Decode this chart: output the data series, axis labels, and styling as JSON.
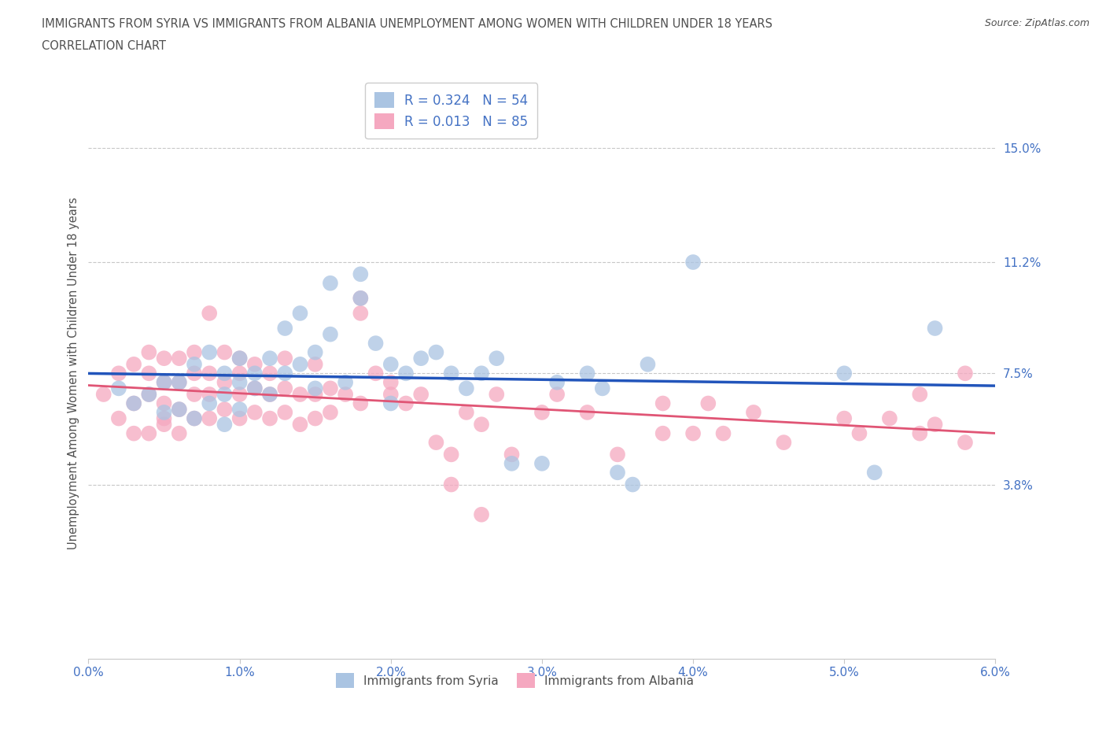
{
  "title_line1": "IMMIGRANTS FROM SYRIA VS IMMIGRANTS FROM ALBANIA UNEMPLOYMENT AMONG WOMEN WITH CHILDREN UNDER 18 YEARS",
  "title_line2": "CORRELATION CHART",
  "source": "Source: ZipAtlas.com",
  "ylabel": "Unemployment Among Women with Children Under 18 years",
  "xlim": [
    0.0,
    0.06
  ],
  "ylim": [
    -0.02,
    0.17
  ],
  "xticks": [
    0.0,
    0.01,
    0.02,
    0.03,
    0.04,
    0.05,
    0.06
  ],
  "xtick_labels": [
    "0.0%",
    "1.0%",
    "2.0%",
    "3.0%",
    "4.0%",
    "5.0%",
    "6.0%"
  ],
  "ytick_positions": [
    0.038,
    0.075,
    0.112,
    0.15
  ],
  "ytick_labels": [
    "3.8%",
    "7.5%",
    "11.2%",
    "15.0%"
  ],
  "syria_R": 0.324,
  "syria_N": 54,
  "albania_R": 0.013,
  "albania_N": 85,
  "syria_color": "#aac4e2",
  "albania_color": "#f5a8c0",
  "syria_line_color": "#2255bb",
  "albania_line_color": "#e05575",
  "legend_label_syria": "Immigrants from Syria",
  "legend_label_albania": "Immigrants from Albania",
  "title_color": "#505050",
  "axis_label_color": "#4472c4",
  "grid_color": "#c8c8c8",
  "syria_x": [
    0.002,
    0.003,
    0.004,
    0.005,
    0.005,
    0.006,
    0.006,
    0.007,
    0.007,
    0.008,
    0.008,
    0.009,
    0.009,
    0.009,
    0.01,
    0.01,
    0.01,
    0.011,
    0.011,
    0.012,
    0.012,
    0.013,
    0.013,
    0.014,
    0.014,
    0.015,
    0.015,
    0.016,
    0.016,
    0.017,
    0.018,
    0.018,
    0.019,
    0.02,
    0.02,
    0.021,
    0.022,
    0.023,
    0.024,
    0.025,
    0.026,
    0.027,
    0.028,
    0.03,
    0.031,
    0.033,
    0.034,
    0.035,
    0.036,
    0.037,
    0.04,
    0.05,
    0.052,
    0.056
  ],
  "syria_y": [
    0.07,
    0.065,
    0.068,
    0.062,
    0.072,
    0.063,
    0.072,
    0.06,
    0.078,
    0.065,
    0.082,
    0.058,
    0.068,
    0.075,
    0.063,
    0.072,
    0.08,
    0.07,
    0.075,
    0.068,
    0.08,
    0.075,
    0.09,
    0.078,
    0.095,
    0.07,
    0.082,
    0.088,
    0.105,
    0.072,
    0.108,
    0.1,
    0.085,
    0.078,
    0.065,
    0.075,
    0.08,
    0.082,
    0.075,
    0.07,
    0.075,
    0.08,
    0.045,
    0.045,
    0.072,
    0.075,
    0.07,
    0.042,
    0.038,
    0.078,
    0.112,
    0.075,
    0.042,
    0.09
  ],
  "albania_x": [
    0.001,
    0.002,
    0.002,
    0.003,
    0.003,
    0.003,
    0.004,
    0.004,
    0.004,
    0.004,
    0.005,
    0.005,
    0.005,
    0.005,
    0.005,
    0.006,
    0.006,
    0.006,
    0.006,
    0.007,
    0.007,
    0.007,
    0.007,
    0.008,
    0.008,
    0.008,
    0.008,
    0.009,
    0.009,
    0.009,
    0.01,
    0.01,
    0.01,
    0.01,
    0.011,
    0.011,
    0.011,
    0.012,
    0.012,
    0.012,
    0.013,
    0.013,
    0.013,
    0.014,
    0.014,
    0.015,
    0.015,
    0.015,
    0.016,
    0.016,
    0.017,
    0.018,
    0.018,
    0.018,
    0.019,
    0.02,
    0.02,
    0.021,
    0.022,
    0.023,
    0.024,
    0.025,
    0.026,
    0.027,
    0.028,
    0.03,
    0.031,
    0.033,
    0.035,
    0.038,
    0.04,
    0.041,
    0.042,
    0.044,
    0.046,
    0.05,
    0.051,
    0.053,
    0.055,
    0.056,
    0.058,
    0.024,
    0.026,
    0.038,
    0.055,
    0.058
  ],
  "albania_y": [
    0.068,
    0.06,
    0.075,
    0.055,
    0.065,
    0.078,
    0.055,
    0.068,
    0.075,
    0.082,
    0.058,
    0.065,
    0.072,
    0.08,
    0.06,
    0.055,
    0.063,
    0.072,
    0.08,
    0.06,
    0.068,
    0.075,
    0.082,
    0.06,
    0.068,
    0.075,
    0.095,
    0.063,
    0.072,
    0.082,
    0.06,
    0.068,
    0.075,
    0.08,
    0.062,
    0.07,
    0.078,
    0.06,
    0.068,
    0.075,
    0.062,
    0.07,
    0.08,
    0.058,
    0.068,
    0.06,
    0.068,
    0.078,
    0.062,
    0.07,
    0.068,
    0.095,
    0.1,
    0.065,
    0.075,
    0.072,
    0.068,
    0.065,
    0.068,
    0.052,
    0.048,
    0.062,
    0.058,
    0.068,
    0.048,
    0.062,
    0.068,
    0.062,
    0.048,
    0.065,
    0.055,
    0.065,
    0.055,
    0.062,
    0.052,
    0.06,
    0.055,
    0.06,
    0.055,
    0.058,
    0.052,
    0.038,
    0.028,
    0.055,
    0.068,
    0.075
  ]
}
